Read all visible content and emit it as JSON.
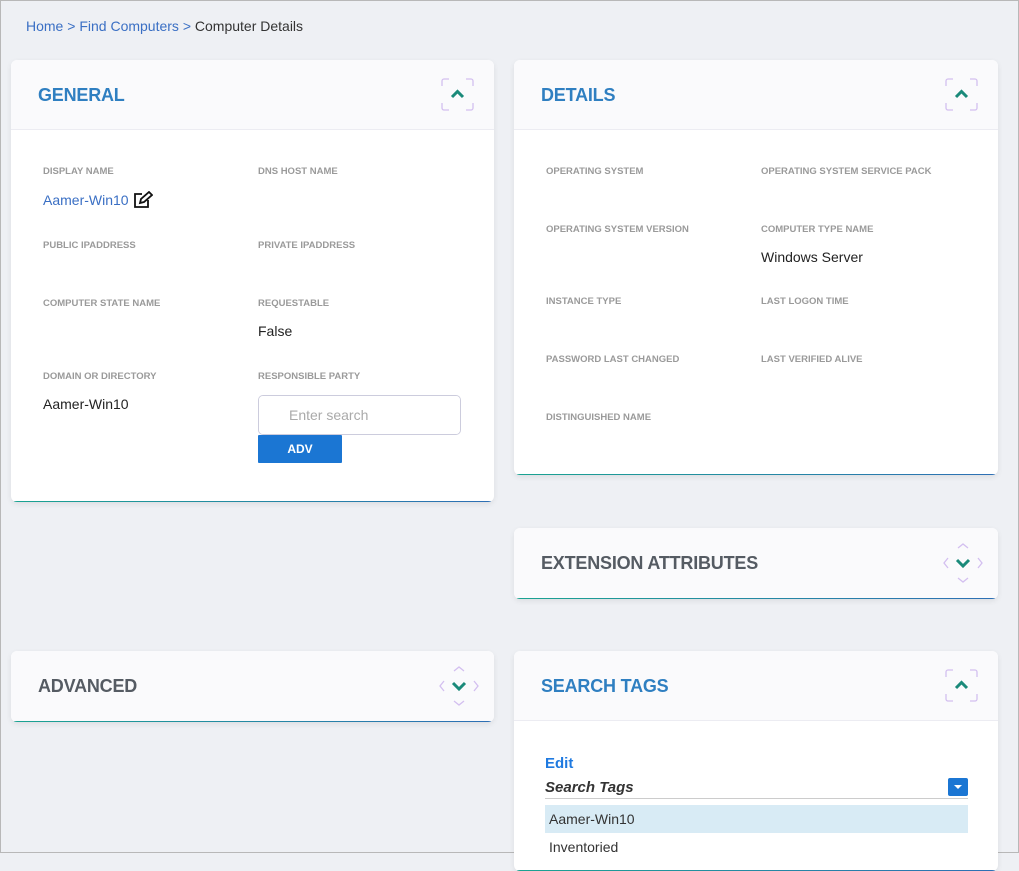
{
  "breadcrumb": {
    "home": "Home",
    "find": "Find Computers",
    "current": "Computer Details",
    "sep": ">"
  },
  "general": {
    "title": "GENERAL",
    "fields": [
      {
        "label": "Display Name",
        "value": "Aamer-Win10"
      },
      {
        "label": "DNS Host Name",
        "value": ""
      },
      {
        "label": "Public IPAddress",
        "value": ""
      },
      {
        "label": "Private IPAddress",
        "value": ""
      },
      {
        "label": "Computer State Name",
        "value": ""
      },
      {
        "label": "Requestable",
        "value": "False"
      },
      {
        "label": "Domain or Directory",
        "value": "Aamer-Win10"
      },
      {
        "label": "Responsible Party",
        "value": ""
      }
    ],
    "search_placeholder": "Enter search",
    "adv_label": "ADV"
  },
  "details": {
    "title": "DETAILS",
    "fields": [
      {
        "label": "Operating System",
        "value": ""
      },
      {
        "label": "Operating System Service Pack",
        "value": ""
      },
      {
        "label": "Operating System Version",
        "value": ""
      },
      {
        "label": "Computer Type Name",
        "value": "Windows Server"
      },
      {
        "label": "Instance Type",
        "value": ""
      },
      {
        "label": "Last Logon Time",
        "value": ""
      },
      {
        "label": "Password Last Changed",
        "value": ""
      },
      {
        "label": "Last Verified Alive",
        "value": ""
      },
      {
        "label": "Distinguished Name",
        "value": ""
      }
    ]
  },
  "extension": {
    "title": "EXTENSION ATTRIBUTES"
  },
  "advanced": {
    "title": "ADVANCED"
  },
  "search_tags": {
    "title": "SEARCH TAGS",
    "edit": "Edit",
    "select_label": "Search Tags",
    "options": [
      "Aamer-Win10",
      "Inventoried"
    ]
  },
  "colors": {
    "accent": "#1b76d3",
    "title": "#2f7fc1",
    "toggle": "#1a8a7a"
  }
}
